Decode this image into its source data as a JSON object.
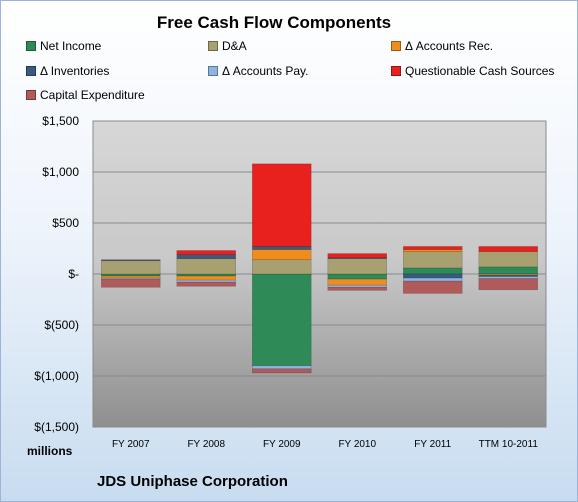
{
  "chart_data": {
    "type": "bar",
    "stacked": true,
    "title": "Free Cash Flow Components",
    "xlabel": "",
    "ylabel": "",
    "units_label": "millions",
    "footer": "JDS Uniphase Corporation",
    "categories": [
      "FY 2007",
      "FY 2008",
      "FY 2009",
      "FY 2010",
      "FY 2011",
      "TTM 10-2011"
    ],
    "ylim": [
      -1500,
      1500
    ],
    "yticks": [
      1500,
      1000,
      500,
      0,
      -500,
      -1000,
      -1500
    ],
    "ytick_labels": [
      "$1,500",
      "$1,000",
      "$500",
      "$-",
      "$(500)",
      "$(1,000)",
      "$(1,500)"
    ],
    "grid": true,
    "legend_position": "top",
    "series": [
      {
        "name": "Net Income",
        "color": "#2e8b57",
        "values": [
          -20,
          -20,
          -900,
          -50,
          60,
          70
        ]
      },
      {
        "name": "D&A",
        "color": "#a8a070",
        "values": [
          130,
          150,
          140,
          150,
          160,
          150
        ]
      },
      {
        "name": "Δ Accounts Rec.",
        "color": "#f08c1e",
        "values": [
          -20,
          -40,
          100,
          -60,
          20,
          -10
        ]
      },
      {
        "name": "Δ Inventories",
        "color": "#3a5a80",
        "values": [
          10,
          40,
          30,
          10,
          -40,
          -15
        ]
      },
      {
        "name": "Δ Accounts Pay.",
        "color": "#8eb4e0",
        "values": [
          -10,
          -20,
          -30,
          -20,
          -30,
          -20
        ]
      },
      {
        "name": "Questionable Cash Sources",
        "color": "#e8201e",
        "values": [
          0,
          40,
          810,
          40,
          30,
          50
        ]
      },
      {
        "name": "Capital Expenditure",
        "color": "#b05a5a",
        "values": [
          -80,
          -40,
          -40,
          -30,
          -120,
          -110
        ]
      }
    ]
  }
}
